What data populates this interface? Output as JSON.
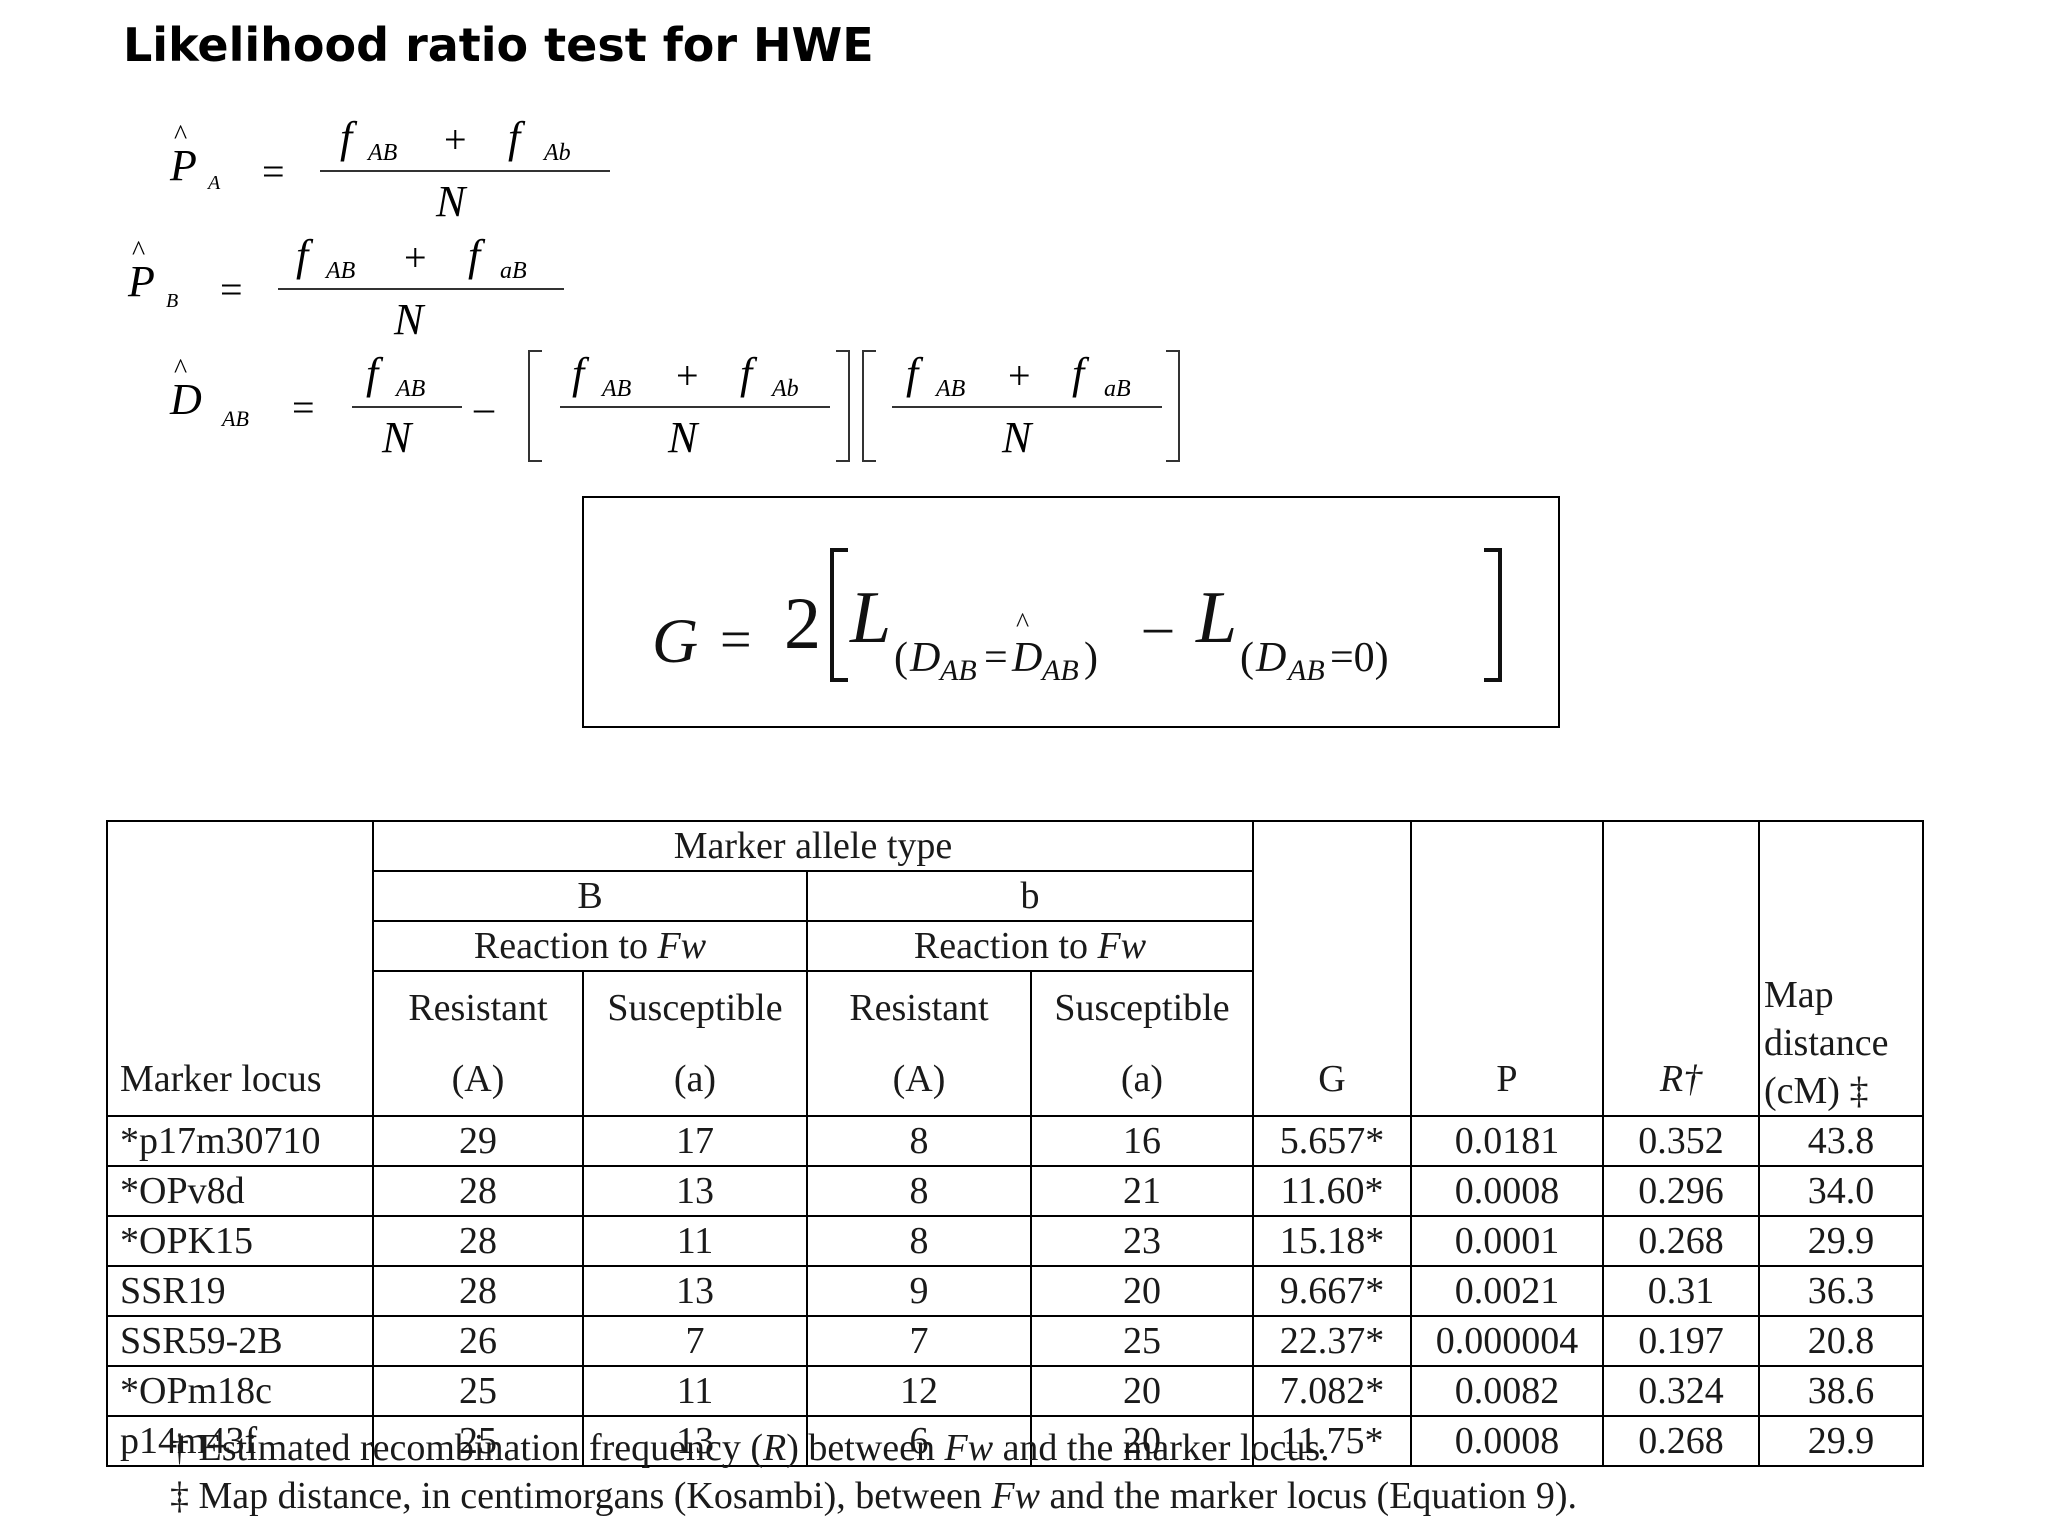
{
  "title": "Likelihood ratio test for HWE",
  "equations": {
    "pa": {
      "lhs": "P",
      "lhs_sub": "A",
      "num1": "f",
      "num1_sub": "AB",
      "plus": "+",
      "num2": "f",
      "num2_sub": "Ab",
      "den": "N",
      "eq": "="
    },
    "pb": {
      "lhs": "P",
      "lhs_sub": "B",
      "num1": "f",
      "num1_sub": "AB",
      "plus": "+",
      "num2": "f",
      "num2_sub": "aB",
      "den": "N",
      "eq": "="
    },
    "dab": {
      "lhs": "D",
      "lhs_sub": "AB",
      "eq": "=",
      "t1_num": "f",
      "t1_sub": "AB",
      "t1_den": "N",
      "minus": "–",
      "t2_num1": "f",
      "t2_sub1": "AB",
      "t2_num2": "f",
      "t2_sub2": "Ab",
      "t2_den": "N",
      "t3_num1": "f",
      "t3_sub1": "AB",
      "t3_num2": "f",
      "t3_sub2": "aB",
      "t3_den": "N"
    },
    "g": {
      "G": "G",
      "eq": "=",
      "two": "2",
      "L1": "L",
      "L1_sub": "(D",
      "L1_sub2": "AB",
      "L1_sub3": "=D",
      "L1_sub4": "AB",
      "L1_sub5": ")",
      "minus": "–",
      "L2": "L",
      "L2_sub": "(D",
      "L2_sub2": "AB",
      "L2_sub3": "=0)"
    }
  },
  "table": {
    "header_group": "Marker allele type",
    "allele_B": "B",
    "allele_b": "b",
    "reaction_B": "Reaction to ",
    "reaction_b": "Reaction to ",
    "fw": "Fw",
    "resistant": "Resistant",
    "susceptible": "Susceptible",
    "A": "(A)",
    "a": "(a)",
    "marker_locus": "Marker locus",
    "G": "G",
    "P": "P",
    "R": "R†",
    "map1": "Map",
    "map2": "distance",
    "map3": "(cM) ‡",
    "rows": [
      [
        "*p17m30710",
        "29",
        "17",
        "8",
        "16",
        "5.657*",
        "0.0181",
        "0.352",
        "43.8"
      ],
      [
        "*OPv8d",
        "28",
        "13",
        "8",
        "21",
        "11.60*",
        "0.0008",
        "0.296",
        "34.0"
      ],
      [
        "*OPK15",
        "28",
        "11",
        "8",
        "23",
        "15.18*",
        "0.0001",
        "0.268",
        "29.9"
      ],
      [
        "SSR19",
        "28",
        "13",
        "9",
        "20",
        "9.667*",
        "0.0021",
        "0.31",
        "36.3"
      ],
      [
        "SSR59-2B",
        "26",
        "7",
        "7",
        "25",
        "22.37*",
        "0.000004",
        "0.197",
        "20.8"
      ],
      [
        "*OPm18c",
        "25",
        "11",
        "12",
        "20",
        "7.082*",
        "0.0082",
        "0.324",
        "38.6"
      ],
      [
        "p14m43f",
        "25",
        "13",
        "6",
        "20",
        "11.75*",
        "0.0008",
        "0.268",
        "29.9"
      ]
    ]
  },
  "footnotes": {
    "f1_a": "† Estimated recombination frequency (",
    "f1_R": "R",
    "f1_b": ") between ",
    "f1_fw": "Fw",
    "f1_c": " and the marker locus.",
    "f2_a": "‡ Map distance, in centimorgans (Kosambi), between ",
    "f2_fw": "Fw",
    "f2_b": " and the marker locus (Equation 9)."
  }
}
